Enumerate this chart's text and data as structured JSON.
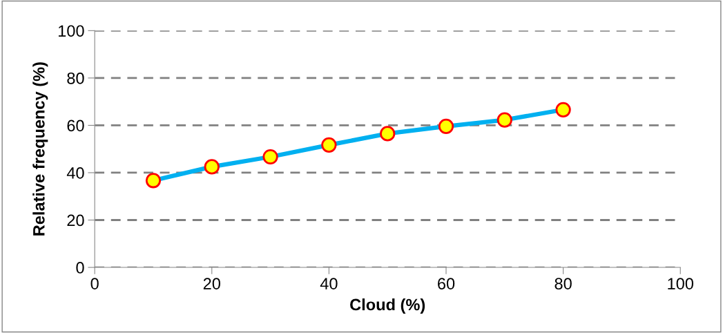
{
  "chart_data": {
    "type": "line",
    "xlabel": "Cloud (%)",
    "ylabel": "Relative frequency (%)",
    "x": [
      10,
      20,
      30,
      40,
      50,
      60,
      70,
      80
    ],
    "series": [
      {
        "color": "#00b0f0",
        "values": [
          36.7,
          42.5,
          46.7,
          51.7,
          56.5,
          59.6,
          62.3,
          66.6
        ]
      }
    ],
    "xlim": [
      0,
      100
    ],
    "xticks": [
      0,
      20,
      40,
      60,
      80,
      100
    ],
    "ylim": [
      0,
      100
    ],
    "yticks": [
      0,
      20,
      40,
      60,
      80,
      100
    ],
    "grid": "y",
    "marker": "circle",
    "line_style": "solid",
    "legend": false
  }
}
